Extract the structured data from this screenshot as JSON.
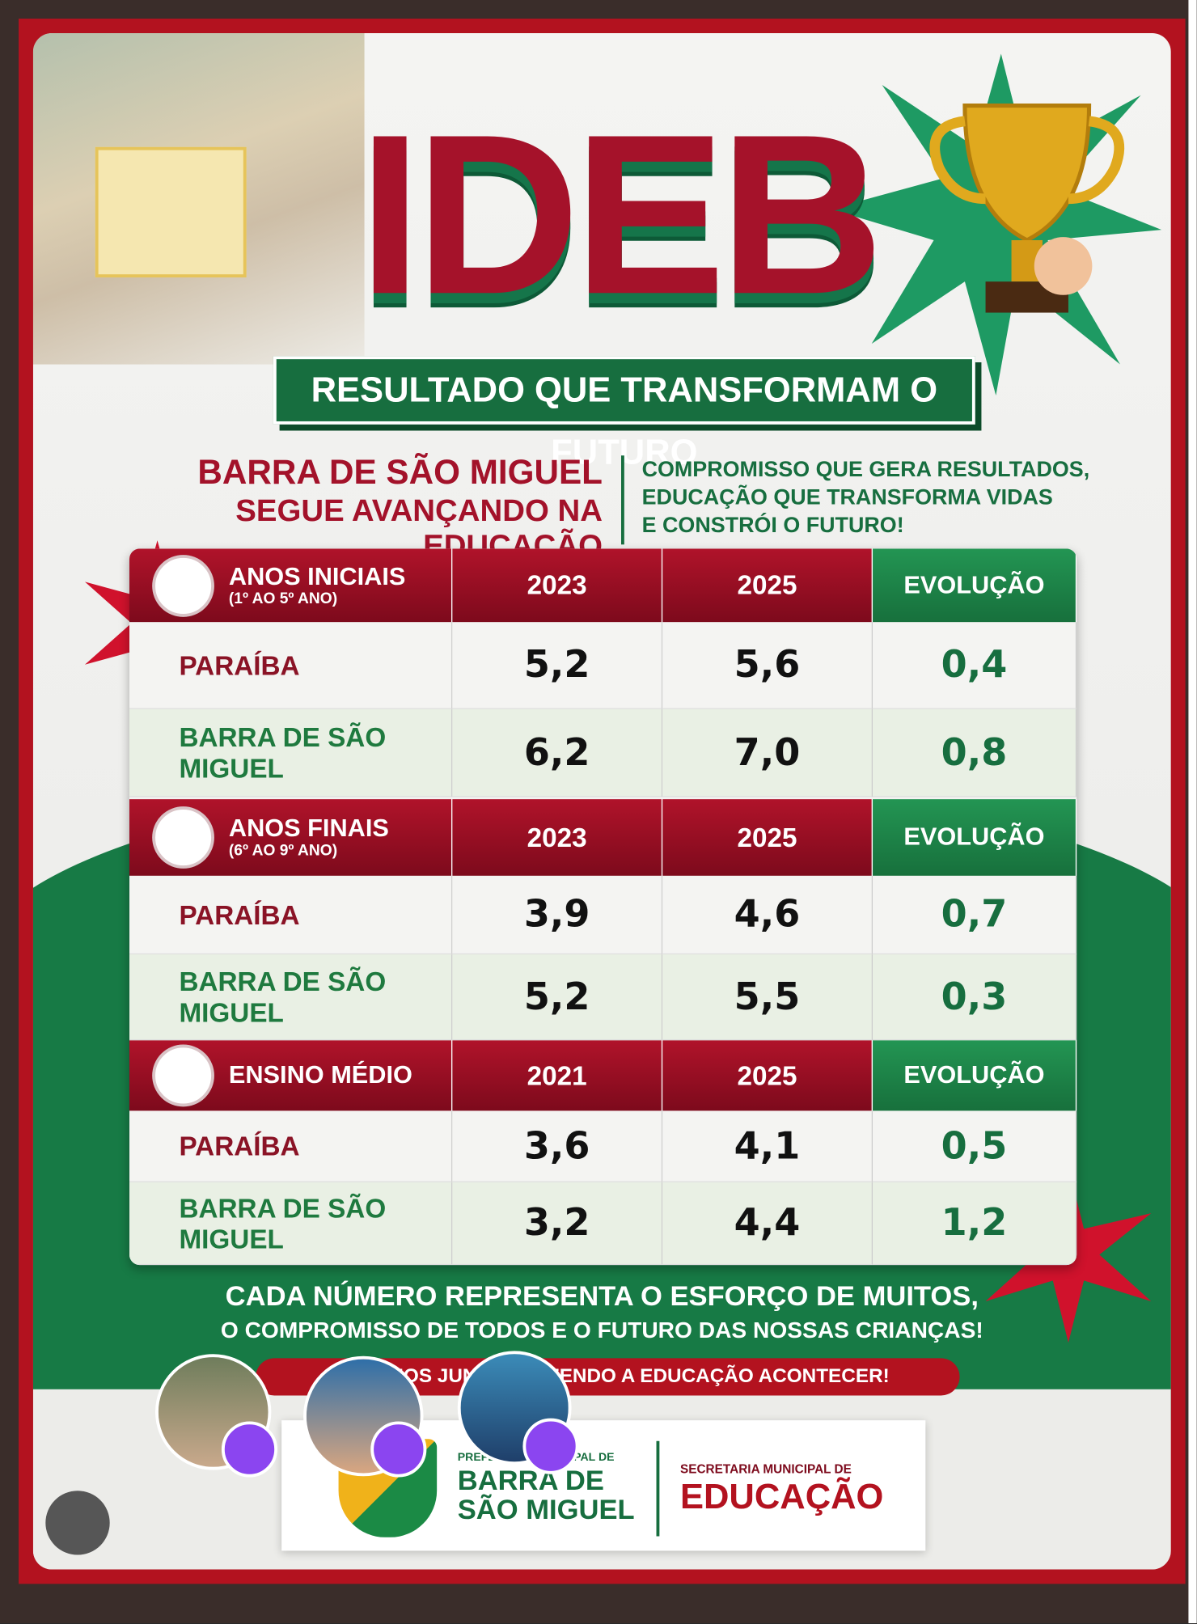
{
  "header": {
    "title": "IDEB",
    "subtitle": "RESULTADO QUE TRANSFORMAM O FUTURO"
  },
  "intro": {
    "left": [
      "BARRA DE SÃO MIGUEL",
      "SEGUE AVANÇANDO NA EDUCAÇÃO"
    ],
    "right": [
      "COMPROMISSO QUE GERA RESULTADOS,",
      "EDUCAÇÃO QUE TRANSFORMA VIDAS",
      "E CONSTRÓI O FUTURO!"
    ]
  },
  "table": {
    "sections": [
      {
        "title": "ANOS INICIAIS",
        "subtitle": "(1º AO 5º ANO)",
        "columns": [
          "2023",
          "2025",
          "EVOLUÇÃO"
        ],
        "rows": [
          [
            "PARAÍBA",
            "5,2",
            "5,6",
            "0,4"
          ],
          [
            "BARRA DE SÃO MIGUEL",
            "6,2",
            "7,0",
            "0,8"
          ]
        ]
      },
      {
        "title": "ANOS FINAIS",
        "subtitle": "(6º AO 9º ANO)",
        "columns": [
          "2023",
          "2025",
          "EVOLUÇÃO"
        ],
        "rows": [
          [
            "PARAÍBA",
            "3,9",
            "4,6",
            "0,7"
          ],
          [
            "BARRA DE SÃO MIGUEL",
            "5,2",
            "5,5",
            "0,3"
          ]
        ]
      },
      {
        "title": "ENSINO MÉDIO",
        "columns": [
          "2021",
          "2025",
          "EVOLUÇÃO"
        ],
        "rows": [
          [
            "PARAÍBA",
            "3,6",
            "4,1",
            "0,5"
          ],
          [
            "BARRA DE SÃO MIGUEL",
            "3,2",
            "4,4",
            "1,2"
          ]
        ]
      }
    ]
  },
  "footer": {
    "lines": [
      "CADA NÚMERO REPRESENTA O ESFORÇO DE MUITOS,",
      "O COMPROMISSO DE TODOS E O FUTURO DAS NOSSAS CRIANÇAS!"
    ],
    "banner": "SEGUIMOS JUNTOS FAZENDO A EDUCAÇÃO ACONTECER!",
    "logo_city_prefix": "PREFEITURA MUNICIPAL DE",
    "logo_city": "BARRA DE SÃO MIGUEL",
    "logo_dept_prefix": "SECRETARIA MUNICIPAL DE",
    "logo_dept": "EDUCAÇÃO"
  }
}
